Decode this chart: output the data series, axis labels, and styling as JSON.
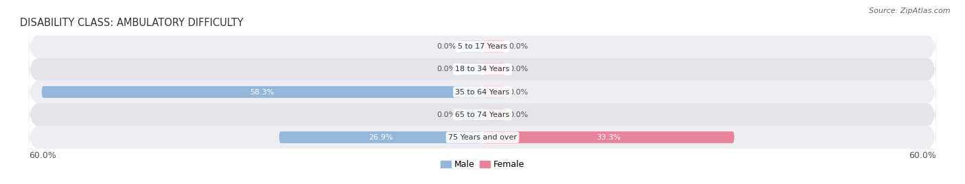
{
  "title": "DISABILITY CLASS: AMBULATORY DIFFICULTY",
  "source": "Source: ZipAtlas.com",
  "categories": [
    "5 to 17 Years",
    "18 to 34 Years",
    "35 to 64 Years",
    "65 to 74 Years",
    "75 Years and over"
  ],
  "male_values": [
    0.0,
    0.0,
    58.3,
    0.0,
    26.9
  ],
  "female_values": [
    0.0,
    0.0,
    0.0,
    0.0,
    33.3
  ],
  "max_val": 60.0,
  "male_color": "#93b8dc",
  "female_color": "#e8839c",
  "row_bg_colors": [
    "#ededf2",
    "#e4e4ea",
    "#ededf2",
    "#e4e4ea",
    "#ededf2"
  ],
  "label_color_white": "#ffffff",
  "label_color_dark": "#555555",
  "title_fontsize": 10.5,
  "source_fontsize": 8,
  "bar_label_fontsize": 8,
  "cat_label_fontsize": 8,
  "legend_fontsize": 9,
  "bar_height": 0.52,
  "stub_size": 3.0,
  "x_left_label": "60.0%",
  "x_right_label": "60.0%"
}
